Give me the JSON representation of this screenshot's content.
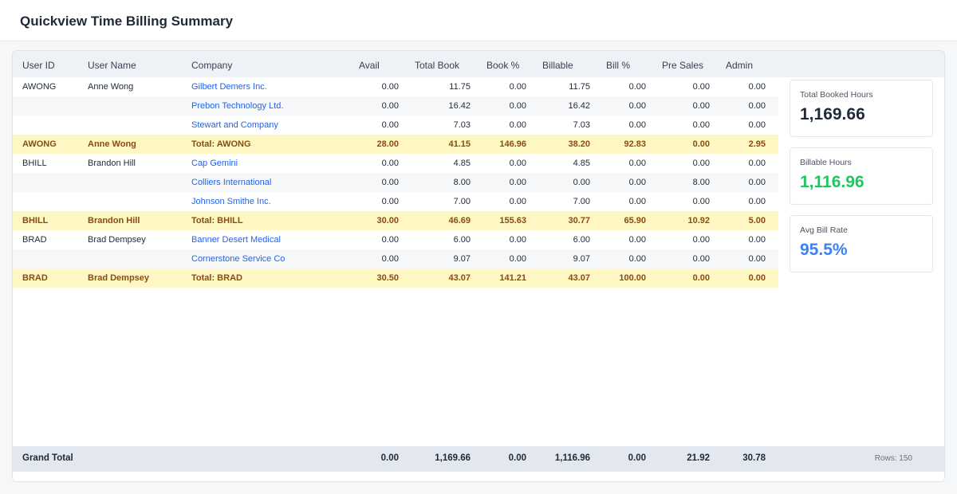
{
  "title": "Quickview Time Billing Summary",
  "columns": [
    "User ID",
    "User Name",
    "Company",
    "Avail",
    "Total Book",
    "Book %",
    "Billable",
    "Bill %",
    "Pre Sales",
    "Admin"
  ],
  "rows": [
    {
      "type": "data",
      "user_id": "AWONG",
      "user_name": "Anne Wong",
      "company": "Gilbert Demers Inc.",
      "avail": "0.00",
      "total_book": "11.75",
      "book_pct": "0.00",
      "billable": "11.75",
      "bill_pct": "0.00",
      "pre_sales": "0.00",
      "admin": "0.00"
    },
    {
      "type": "data",
      "user_id": "",
      "user_name": "",
      "company": "Prebon Technology Ltd.",
      "avail": "0.00",
      "total_book": "16.42",
      "book_pct": "0.00",
      "billable": "16.42",
      "bill_pct": "0.00",
      "pre_sales": "0.00",
      "admin": "0.00"
    },
    {
      "type": "data",
      "user_id": "",
      "user_name": "",
      "company": "Stewart and Company",
      "avail": "0.00",
      "total_book": "7.03",
      "book_pct": "0.00",
      "billable": "7.03",
      "bill_pct": "0.00",
      "pre_sales": "0.00",
      "admin": "0.00"
    },
    {
      "type": "total",
      "user_id": "AWONG",
      "user_name": "Anne Wong",
      "company": "Total: AWONG",
      "avail": "28.00",
      "total_book": "41.15",
      "book_pct": "146.96",
      "billable": "38.20",
      "bill_pct": "92.83",
      "pre_sales": "0.00",
      "admin": "2.95"
    },
    {
      "type": "data",
      "user_id": "BHILL",
      "user_name": "Brandon Hill",
      "company": "Cap Gemini",
      "avail": "0.00",
      "total_book": "4.85",
      "book_pct": "0.00",
      "billable": "4.85",
      "bill_pct": "0.00",
      "pre_sales": "0.00",
      "admin": "0.00"
    },
    {
      "type": "data",
      "user_id": "",
      "user_name": "",
      "company": "Colliers International",
      "avail": "0.00",
      "total_book": "8.00",
      "book_pct": "0.00",
      "billable": "0.00",
      "bill_pct": "0.00",
      "pre_sales": "8.00",
      "admin": "0.00"
    },
    {
      "type": "data",
      "user_id": "",
      "user_name": "",
      "company": "Johnson Smithe Inc.",
      "avail": "0.00",
      "total_book": "7.00",
      "book_pct": "0.00",
      "billable": "7.00",
      "bill_pct": "0.00",
      "pre_sales": "0.00",
      "admin": "0.00"
    },
    {
      "type": "total",
      "user_id": "BHILL",
      "user_name": "Brandon Hill",
      "company": "Total: BHILL",
      "avail": "30.00",
      "total_book": "46.69",
      "book_pct": "155.63",
      "billable": "30.77",
      "bill_pct": "65.90",
      "pre_sales": "10.92",
      "admin": "5.00"
    },
    {
      "type": "data",
      "user_id": "BRAD",
      "user_name": "Brad Dempsey",
      "company": "Banner Desert Medical",
      "avail": "0.00",
      "total_book": "6.00",
      "book_pct": "0.00",
      "billable": "6.00",
      "bill_pct": "0.00",
      "pre_sales": "0.00",
      "admin": "0.00"
    },
    {
      "type": "data",
      "user_id": "",
      "user_name": "",
      "company": "Cornerstone Service Co",
      "avail": "0.00",
      "total_book": "9.07",
      "book_pct": "0.00",
      "billable": "9.07",
      "bill_pct": "0.00",
      "pre_sales": "0.00",
      "admin": "0.00"
    },
    {
      "type": "total",
      "user_id": "BRAD",
      "user_name": "Brad Dempsey",
      "company": "Total: BRAD",
      "avail": "30.50",
      "total_book": "43.07",
      "book_pct": "141.21",
      "billable": "43.07",
      "bill_pct": "100.00",
      "pre_sales": "0.00",
      "admin": "0.00"
    }
  ],
  "grand_total": {
    "label": "Grand Total",
    "avail": "0.00",
    "total_book": "1,169.66",
    "book_pct": "0.00",
    "billable": "1,116.96",
    "bill_pct": "0.00",
    "pre_sales": "21.92",
    "admin": "30.78",
    "rows_text": "Rows: 150"
  },
  "kpis": [
    {
      "label": "Total Booked Hours",
      "value": "1,169.66",
      "color": "#1f2937"
    },
    {
      "label": "Billable Hours",
      "value": "1,116.96",
      "color": "#22c55e"
    },
    {
      "label": "Avg Bill Rate",
      "value": "95.5%",
      "color": "#3b82f6"
    }
  ],
  "colors": {
    "link": "#2563eb",
    "total_row_bg": "#fef7c3",
    "total_row_text": "#8a4d0f",
    "grand_total_bg": "#e3e8f0"
  }
}
